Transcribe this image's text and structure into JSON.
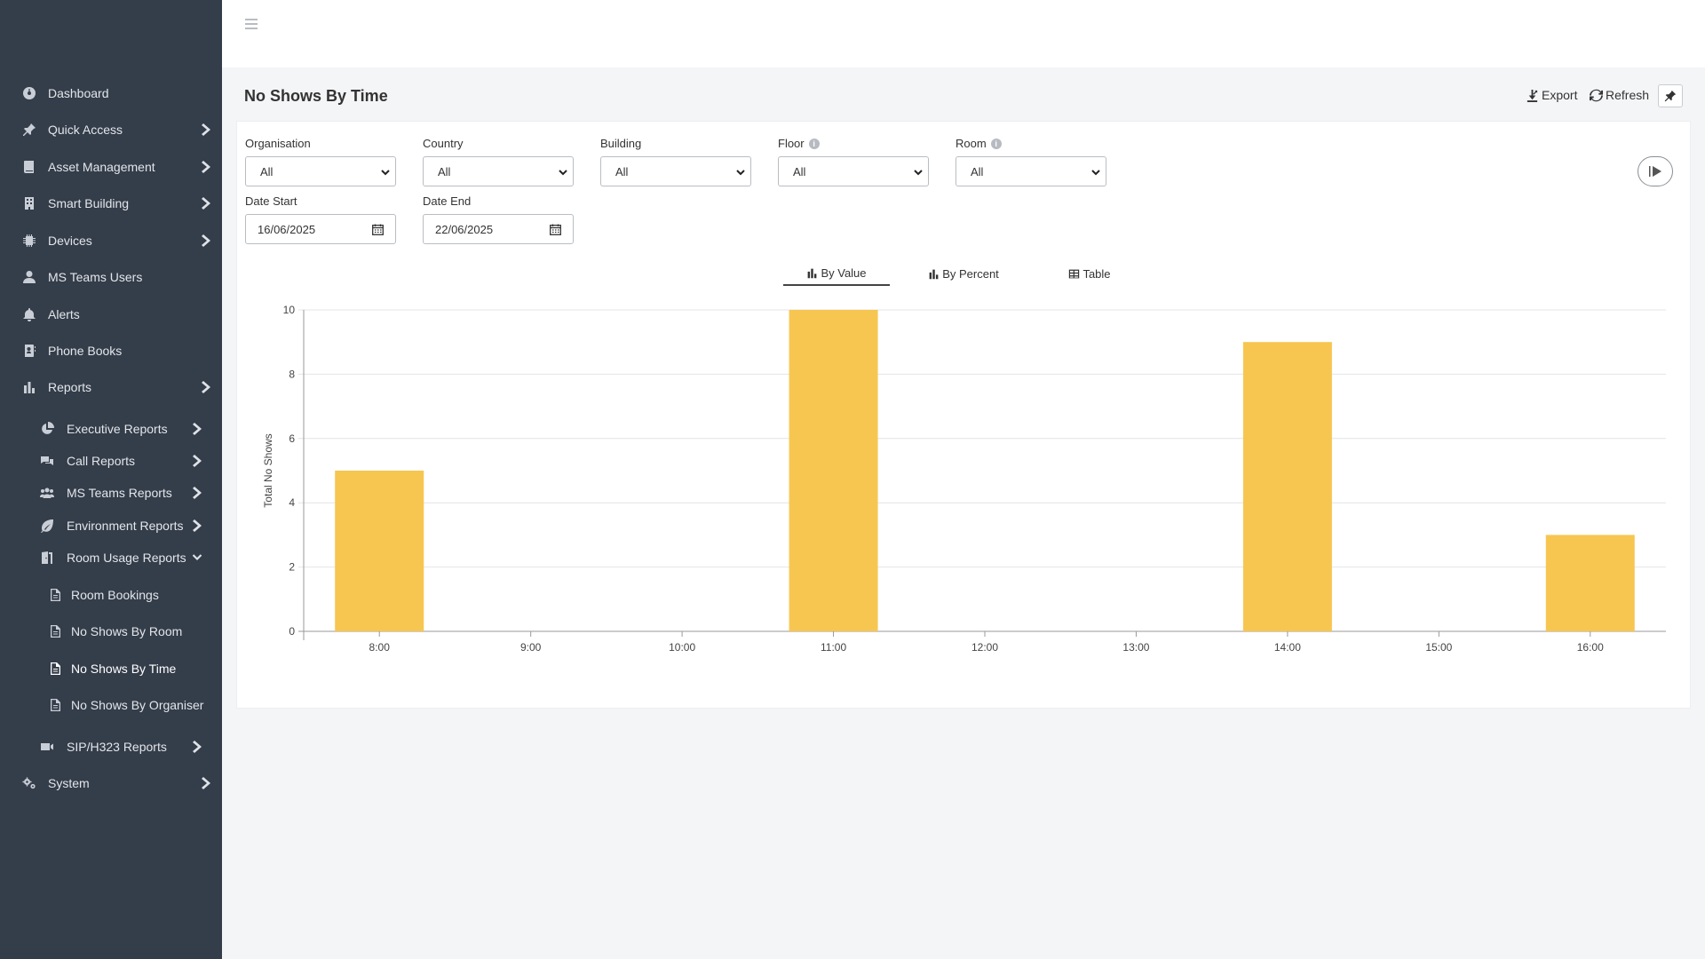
{
  "sidebar": {
    "items": [
      {
        "label": "Dashboard",
        "icon": "dashboard-icon"
      },
      {
        "label": "Quick Access",
        "icon": "pin-icon"
      },
      {
        "label": "Asset Management",
        "icon": "book-icon"
      },
      {
        "label": "Smart Building",
        "icon": "building-icon"
      },
      {
        "label": "Devices",
        "icon": "chip-icon"
      },
      {
        "label": "MS Teams Users",
        "icon": "user-icon"
      },
      {
        "label": "Alerts",
        "icon": "bell-icon"
      },
      {
        "label": "Phone Books",
        "icon": "address-book-icon"
      },
      {
        "label": "Reports",
        "icon": "bar-chart-icon"
      },
      {
        "label": "System",
        "icon": "gears-icon"
      }
    ],
    "reports_sub": [
      {
        "label": "Executive Reports",
        "icon": "pie-chart-icon"
      },
      {
        "label": "Call Reports",
        "icon": "comments-icon"
      },
      {
        "label": "MS Teams Reports",
        "icon": "users-icon"
      },
      {
        "label": "Environment Reports",
        "icon": "leaf-icon"
      },
      {
        "label": "Room Usage Reports",
        "icon": "door-icon"
      },
      {
        "label": "SIP/H323 Reports",
        "icon": "video-icon"
      }
    ],
    "room_usage_sub": [
      {
        "label": "Room Bookings",
        "icon": "document-icon"
      },
      {
        "label": "No Shows By Room",
        "icon": "document-icon"
      },
      {
        "label": "No Shows By Time",
        "icon": "document-icon",
        "active": true
      },
      {
        "label": "No Shows By Organiser",
        "icon": "document-icon"
      }
    ]
  },
  "page": {
    "title": "No Shows By Time",
    "export_label": "Export",
    "refresh_label": "Refresh"
  },
  "filters": {
    "organisation": {
      "label": "Organisation",
      "value": "All"
    },
    "country": {
      "label": "Country",
      "value": "All"
    },
    "building": {
      "label": "Building",
      "value": "All"
    },
    "floor": {
      "label": "Floor",
      "value": "All"
    },
    "room": {
      "label": "Room",
      "value": "All"
    },
    "date_start": {
      "label": "Date Start",
      "value": "16/06/2025"
    },
    "date_end": {
      "label": "Date End",
      "value": "22/06/2025"
    }
  },
  "tabs": [
    {
      "label": "By Value",
      "active": true
    },
    {
      "label": "By Percent",
      "active": false
    },
    {
      "label": "Table",
      "active": false
    }
  ],
  "chart_data": {
    "type": "bar",
    "categories": [
      "8:00",
      "9:00",
      "10:00",
      "11:00",
      "12:00",
      "13:00",
      "14:00",
      "15:00",
      "16:00"
    ],
    "values": [
      5,
      0,
      0,
      10,
      0,
      0,
      9,
      0,
      3
    ],
    "ylabel": "Total No Shows",
    "xlabel": "",
    "ylim": [
      0,
      10
    ],
    "yticks": [
      0,
      2,
      4,
      6,
      8,
      10
    ],
    "bar_color": "#f7c651",
    "grid": true
  }
}
